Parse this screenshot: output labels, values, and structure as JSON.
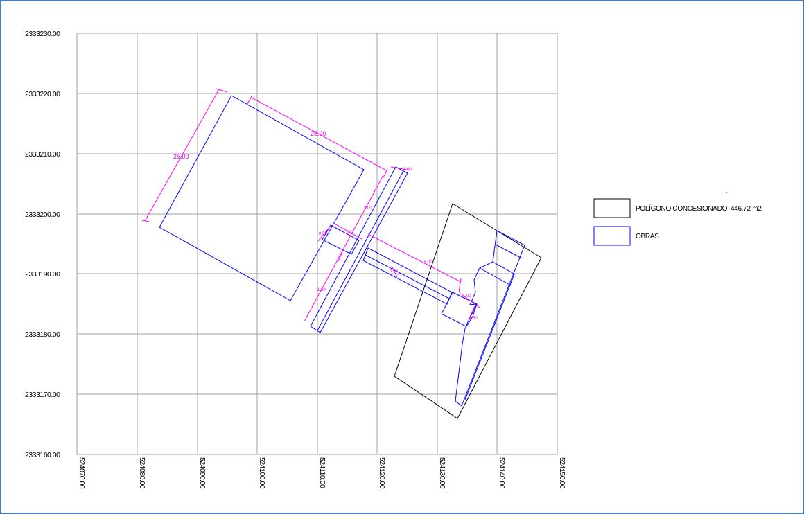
{
  "colors": {
    "frame": "#4a7ab5",
    "grid": "#a0a0a0",
    "concession": "#000000",
    "works": "#0000ff",
    "dimension": "#ff00ff"
  },
  "axes": {
    "y_ticks": [
      "2333230.00",
      "2333220.00",
      "2333210.00",
      "2333200.00",
      "2333190.00",
      "2333180.00",
      "2333170.00",
      "2333160.00"
    ],
    "x_ticks": [
      "524070.00",
      "524080.00",
      "524090.00",
      "524100.00",
      "524110.00",
      "524120.00",
      "524130.00",
      "524140.00",
      "524150.00"
    ]
  },
  "legend": {
    "items": [
      {
        "label": "POLÍGONO CONCESIONADO: 446.72 m2",
        "color": "#000000"
      },
      {
        "label": "OBRAS",
        "color": "#0000ff"
      }
    ]
  },
  "dimension_labels": [
    "25.00",
    "25.00"
  ],
  "small_dimension_labels": [
    "1.00",
    "2.00",
    "0.50",
    "1.00",
    "1.00",
    "6.00",
    "0.50",
    "1.00",
    "0.50",
    "1.00",
    "1.00"
  ]
}
